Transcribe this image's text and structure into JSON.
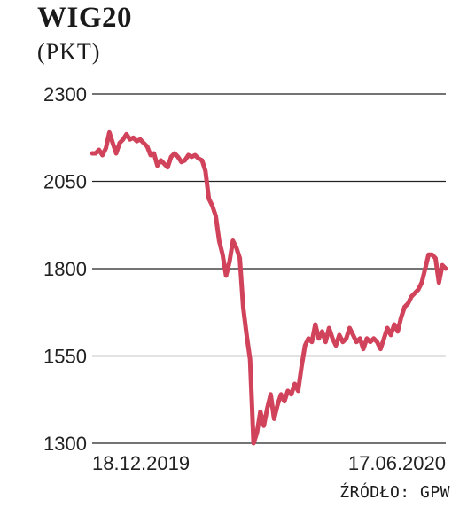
{
  "chart_data": {
    "type": "line",
    "title": "WIG20",
    "unit": "(PKT)",
    "ylim": [
      1300,
      2300
    ],
    "yticks": [
      1300,
      1550,
      1800,
      2050,
      2300
    ],
    "ytick_labels": [
      "1300",
      "1550",
      "1800",
      "2050",
      "2300"
    ],
    "x_labels": [
      "18.12.2019",
      "17.06.2020"
    ],
    "grid": true,
    "series": [
      {
        "values": [
          2130,
          2130,
          2140,
          2125,
          2145,
          2190,
          2160,
          2130,
          2160,
          2170,
          2185,
          2170,
          2175,
          2165,
          2170,
          2160,
          2150,
          2125,
          2130,
          2095,
          2110,
          2100,
          2090,
          2120,
          2130,
          2120,
          2105,
          2110,
          2125,
          2120,
          2125,
          2115,
          2110,
          2080,
          2000,
          1980,
          1950,
          1880,
          1840,
          1780,
          1820,
          1880,
          1860,
          1830,
          1690,
          1610,
          1540,
          1300,
          1330,
          1390,
          1350,
          1400,
          1440,
          1370,
          1410,
          1440,
          1420,
          1450,
          1440,
          1470,
          1450,
          1520,
          1580,
          1600,
          1590,
          1640,
          1600,
          1620,
          1590,
          1630,
          1600,
          1580,
          1610,
          1590,
          1600,
          1630,
          1610,
          1590,
          1600,
          1570,
          1600,
          1590,
          1600,
          1590,
          1570,
          1600,
          1630,
          1610,
          1640,
          1620,
          1660,
          1690,
          1700,
          1720,
          1730,
          1740,
          1760,
          1800,
          1840,
          1840,
          1830,
          1760,
          1810,
          1800
        ],
        "color": "#d1435b"
      }
    ]
  },
  "source": "ŹRÓDŁO: GPW"
}
